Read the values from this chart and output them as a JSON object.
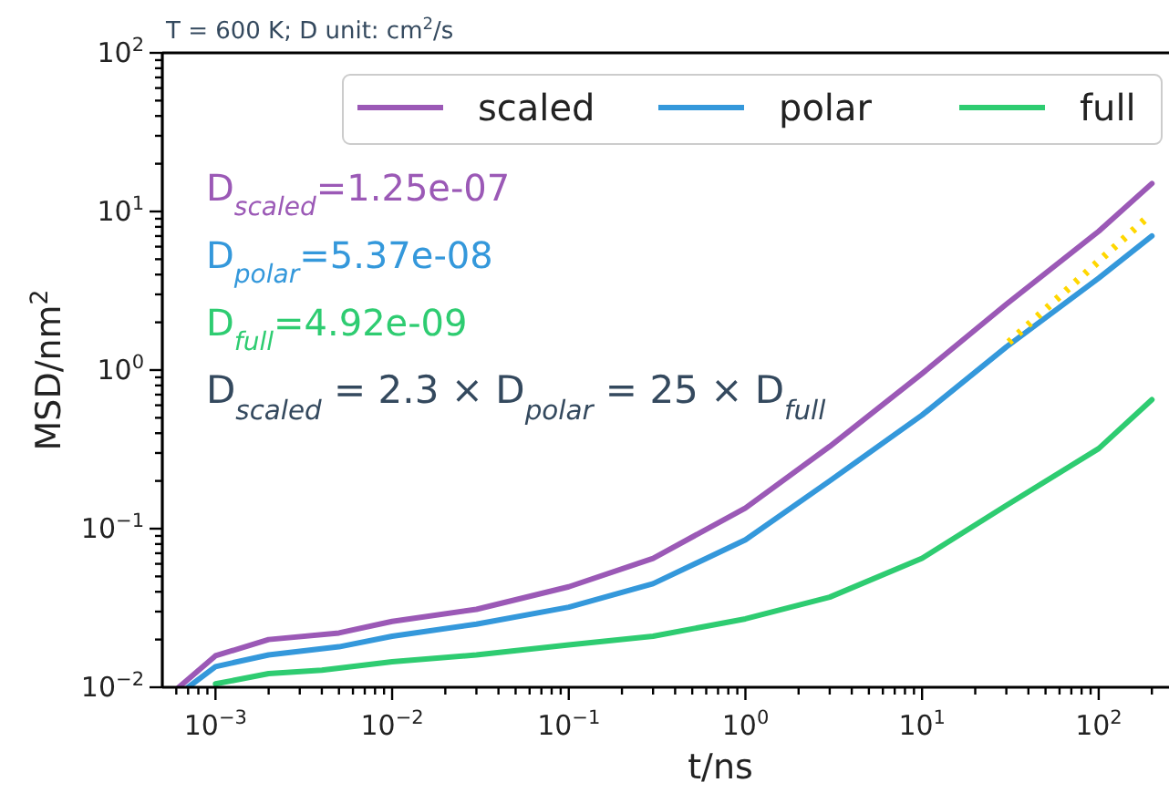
{
  "chart_data": {
    "type": "line",
    "title": "T = 600 K; D unit: cm$^{2}$/s",
    "xlabel": "t/ns",
    "ylabel": "MSD/nm$^{2}$",
    "log": "xy",
    "grid": false,
    "legend": "top right",
    "line_style": "solid",
    "xlim": [
      0.0005,
      250
    ],
    "ylim": [
      0.01,
      100
    ],
    "xticks": [
      {
        "value": 0.0006,
        "label": null
      },
      {
        "value": 0.0007,
        "label": null
      },
      {
        "value": 0.0008,
        "label": null
      },
      {
        "value": 0.0009,
        "label": null
      },
      {
        "value": 0.001,
        "label": "10$^{−3}$"
      },
      {
        "value": 0.002,
        "label": null
      },
      {
        "value": 0.003,
        "label": null
      },
      {
        "value": 0.004,
        "label": null
      },
      {
        "value": 0.005,
        "label": null
      },
      {
        "value": 0.006,
        "label": null
      },
      {
        "value": 0.007,
        "label": null
      },
      {
        "value": 0.008,
        "label": null
      },
      {
        "value": 0.009,
        "label": null
      },
      {
        "value": 0.01,
        "label": "10$^{−2}$"
      },
      {
        "value": 0.02,
        "label": null
      },
      {
        "value": 0.03,
        "label": null
      },
      {
        "value": 0.04,
        "label": null
      },
      {
        "value": 0.05,
        "label": null
      },
      {
        "value": 0.06,
        "label": null
      },
      {
        "value": 0.07,
        "label": null
      },
      {
        "value": 0.08,
        "label": null
      },
      {
        "value": 0.09,
        "label": null
      },
      {
        "value": 0.1,
        "label": "10$^{−1}$"
      },
      {
        "value": 0.2,
        "label": null
      },
      {
        "value": 0.3,
        "label": null
      },
      {
        "value": 0.4,
        "label": null
      },
      {
        "value": 0.5,
        "label": null
      },
      {
        "value": 0.6,
        "label": null
      },
      {
        "value": 0.7,
        "label": null
      },
      {
        "value": 0.8,
        "label": null
      },
      {
        "value": 0.9,
        "label": null
      },
      {
        "value": 1,
        "label": "10$^{0}$"
      },
      {
        "value": 2,
        "label": null
      },
      {
        "value": 3,
        "label": null
      },
      {
        "value": 4,
        "label": null
      },
      {
        "value": 5,
        "label": null
      },
      {
        "value": 6,
        "label": null
      },
      {
        "value": 7,
        "label": null
      },
      {
        "value": 8,
        "label": null
      },
      {
        "value": 9,
        "label": null
      },
      {
        "value": 10,
        "label": "10$^{1}$"
      },
      {
        "value": 20,
        "label": null
      },
      {
        "value": 30,
        "label": null
      },
      {
        "value": 40,
        "label": null
      },
      {
        "value": 50,
        "label": null
      },
      {
        "value": 60,
        "label": null
      },
      {
        "value": 70,
        "label": null
      },
      {
        "value": 80,
        "label": null
      },
      {
        "value": 90,
        "label": null
      },
      {
        "value": 100,
        "label": "10$^{2}$"
      },
      {
        "value": 200,
        "label": null
      }
    ],
    "yticks": [
      {
        "value": 0.01,
        "label": "10$^{−2}$"
      },
      {
        "value": 0.02,
        "label": null
      },
      {
        "value": 0.03,
        "label": null
      },
      {
        "value": 0.04,
        "label": null
      },
      {
        "value": 0.05,
        "label": null
      },
      {
        "value": 0.06,
        "label": null
      },
      {
        "value": 0.07,
        "label": null
      },
      {
        "value": 0.08,
        "label": null
      },
      {
        "value": 0.09,
        "label": null
      },
      {
        "value": 0.1,
        "label": "10$^{−1}$"
      },
      {
        "value": 0.2,
        "label": null
      },
      {
        "value": 0.3,
        "label": null
      },
      {
        "value": 0.4,
        "label": null
      },
      {
        "value": 0.5,
        "label": null
      },
      {
        "value": 0.6,
        "label": null
      },
      {
        "value": 0.7,
        "label": null
      },
      {
        "value": 0.8,
        "label": null
      },
      {
        "value": 0.9,
        "label": null
      },
      {
        "value": 1,
        "label": "10$^{0}$"
      },
      {
        "value": 2,
        "label": null
      },
      {
        "value": 3,
        "label": null
      },
      {
        "value": 4,
        "label": null
      },
      {
        "value": 5,
        "label": null
      },
      {
        "value": 6,
        "label": null
      },
      {
        "value": 7,
        "label": null
      },
      {
        "value": 8,
        "label": null
      },
      {
        "value": 9,
        "label": null
      },
      {
        "value": 10,
        "label": "10$^{1}$"
      },
      {
        "value": 20,
        "label": null
      },
      {
        "value": 30,
        "label": null
      },
      {
        "value": 40,
        "label": null
      },
      {
        "value": 50,
        "label": null
      },
      {
        "value": 60,
        "label": null
      },
      {
        "value": 70,
        "label": null
      },
      {
        "value": 80,
        "label": null
      },
      {
        "value": 90,
        "label": null
      },
      {
        "value": 100,
        "label": "10$^{2}$"
      }
    ],
    "series": [
      {
        "name": "scaled",
        "color": "#9b59b6",
        "x": [
          0.00062,
          0.001,
          0.002,
          0.005,
          0.01,
          0.03,
          0.1,
          0.3,
          1,
          3,
          10,
          30,
          100,
          200
        ],
        "values": [
          0.01,
          0.0158,
          0.02,
          0.022,
          0.026,
          0.031,
          0.043,
          0.065,
          0.135,
          0.33,
          0.95,
          2.6,
          7.5,
          15
        ]
      },
      {
        "name": "polar",
        "color": "#3498db",
        "x": [
          0.0007,
          0.001,
          0.002,
          0.005,
          0.01,
          0.03,
          0.1,
          0.3,
          1,
          3,
          10,
          30,
          100,
          200
        ],
        "values": [
          0.01,
          0.0135,
          0.016,
          0.018,
          0.021,
          0.025,
          0.032,
          0.045,
          0.085,
          0.2,
          0.52,
          1.4,
          3.8,
          7
        ]
      },
      {
        "name": "full",
        "color": "#2ecc71",
        "x": [
          0.001,
          0.002,
          0.004,
          0.01,
          0.03,
          0.1,
          0.3,
          1,
          3,
          10,
          30,
          100,
          200
        ],
        "values": [
          0.0105,
          0.0122,
          0.0128,
          0.0145,
          0.016,
          0.0185,
          0.021,
          0.027,
          0.037,
          0.065,
          0.14,
          0.32,
          0.65
        ]
      },
      {
        "color": "#ffd700",
        "line_style": "dotted",
        "x": [
          31,
          185
        ],
        "values": [
          1.5,
          9
        ]
      }
    ],
    "annotations": [
      "D$_{scaled}$=1.25e-07",
      "D$_{polar}$=5.37e-08",
      "D$_{full}$=4.92e-09",
      "D$_{scaled}$ = 2.3 × D$_{polar}$ = 25 × D$_{full}$"
    ]
  }
}
